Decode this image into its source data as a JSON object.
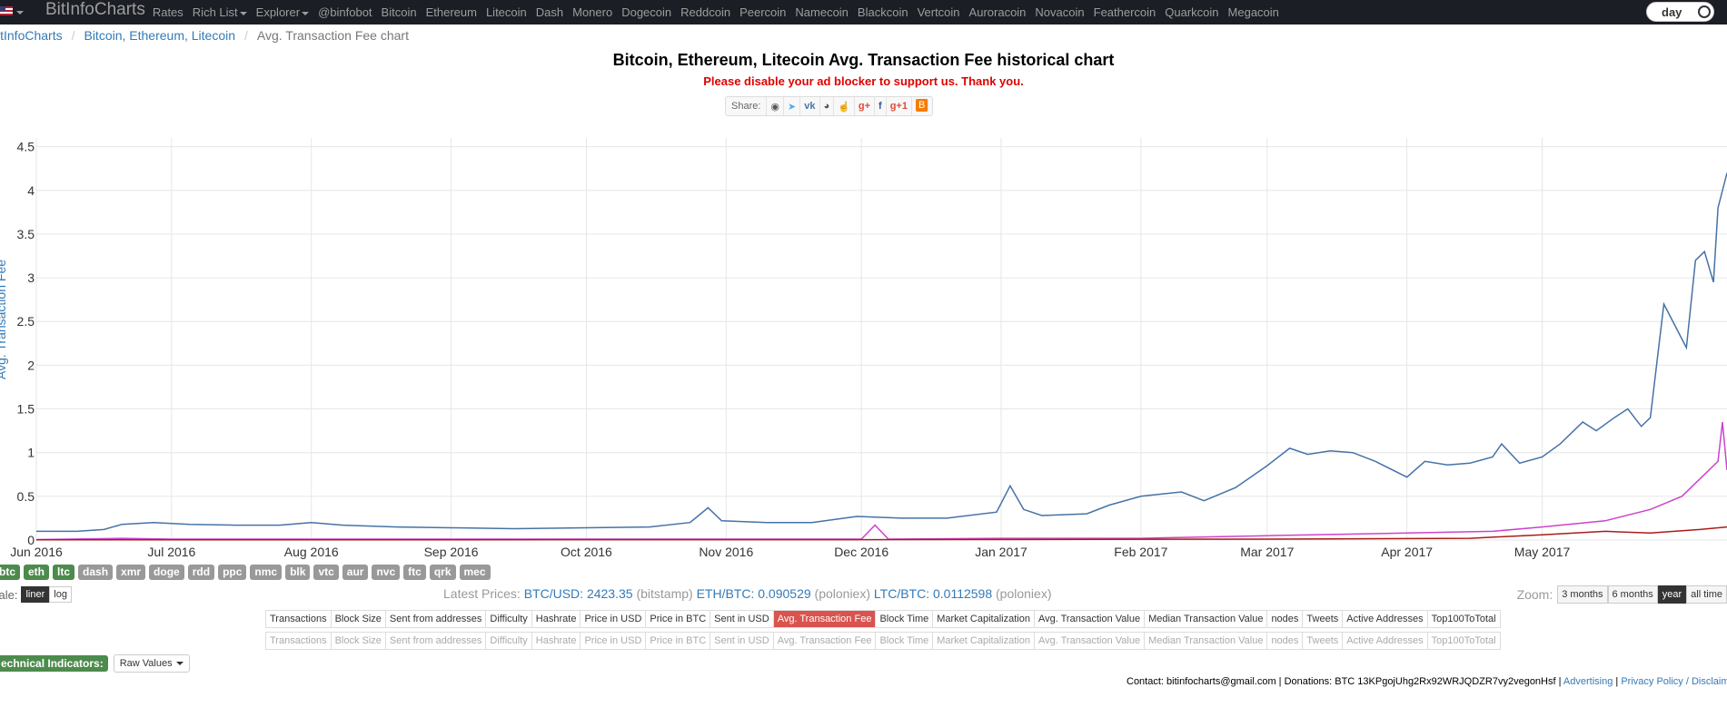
{
  "navbar": {
    "brand": "BitInfoCharts",
    "items": [
      "Rates",
      "Rich List",
      "Explorer",
      "@binfobot",
      "Bitcoin",
      "Ethereum",
      "Litecoin",
      "Dash",
      "Monero",
      "Dogecoin",
      "Reddcoin",
      "Peercoin",
      "Namecoin",
      "Blackcoin",
      "Vertcoin",
      "Auroracoin",
      "Novacoin",
      "Feathercoin",
      "Quarkcoin",
      "Megacoin"
    ],
    "toggle_label": "day"
  },
  "breadcrumb": {
    "home": "itInfoCharts",
    "section": "Bitcoin, Ethereum, Litecoin",
    "current": "Avg. Transaction Fee chart"
  },
  "page": {
    "title": "Bitcoin, Ethereum, Litecoin Avg. Transaction Fee historical chart",
    "ad_note": "Please disable your ad blocker to support us. Thank you.",
    "share_label": "Share:"
  },
  "chart_data": {
    "type": "line",
    "title": "",
    "xlabel": "",
    "ylabel": "Avg. Transaction Fee",
    "ylim": [
      0,
      4.6
    ],
    "y_ticks": [
      "0",
      "0.5",
      "1",
      "1.5",
      "2",
      "2.5",
      "3",
      "3.5",
      "4",
      "4.5"
    ],
    "x_ticks": [
      "Jun 2016",
      "Jul 2016",
      "Aug 2016",
      "Sep 2016",
      "Oct 2016",
      "Nov 2016",
      "Dec 2016",
      "Jan 2017",
      "Feb 2017",
      "Mar 2017",
      "Apr 2017",
      "May 2017"
    ],
    "x_start": "2016-06-01",
    "x_end": "2017-06-11",
    "grid": true,
    "series": [
      {
        "color": "#4572a7",
        "points": [
          [
            "2016-06-01",
            0.1
          ],
          [
            "2016-06-10",
            0.1
          ],
          [
            "2016-06-16",
            0.12
          ],
          [
            "2016-06-20",
            0.18
          ],
          [
            "2016-06-27",
            0.2
          ],
          [
            "2016-07-05",
            0.18
          ],
          [
            "2016-07-15",
            0.17
          ],
          [
            "2016-07-25",
            0.17
          ],
          [
            "2016-08-01",
            0.2
          ],
          [
            "2016-08-08",
            0.17
          ],
          [
            "2016-08-20",
            0.15
          ],
          [
            "2016-09-01",
            0.14
          ],
          [
            "2016-09-15",
            0.13
          ],
          [
            "2016-10-01",
            0.14
          ],
          [
            "2016-10-15",
            0.15
          ],
          [
            "2016-10-24",
            0.2
          ],
          [
            "2016-10-28",
            0.37
          ],
          [
            "2016-10-31",
            0.22
          ],
          [
            "2016-11-10",
            0.2
          ],
          [
            "2016-11-20",
            0.2
          ],
          [
            "2016-11-30",
            0.27
          ],
          [
            "2016-12-10",
            0.25
          ],
          [
            "2016-12-20",
            0.25
          ],
          [
            "2016-12-31",
            0.32
          ],
          [
            "2017-01-03",
            0.62
          ],
          [
            "2017-01-06",
            0.35
          ],
          [
            "2017-01-10",
            0.28
          ],
          [
            "2017-01-20",
            0.3
          ],
          [
            "2017-01-25",
            0.4
          ],
          [
            "2017-02-01",
            0.5
          ],
          [
            "2017-02-10",
            0.55
          ],
          [
            "2017-02-15",
            0.45
          ],
          [
            "2017-02-22",
            0.6
          ],
          [
            "2017-03-01",
            0.85
          ],
          [
            "2017-03-06",
            1.05
          ],
          [
            "2017-03-10",
            0.98
          ],
          [
            "2017-03-15",
            1.02
          ],
          [
            "2017-03-20",
            1.0
          ],
          [
            "2017-03-25",
            0.9
          ],
          [
            "2017-04-01",
            0.72
          ],
          [
            "2017-04-05",
            0.9
          ],
          [
            "2017-04-10",
            0.86
          ],
          [
            "2017-04-15",
            0.88
          ],
          [
            "2017-04-20",
            0.95
          ],
          [
            "2017-04-22",
            1.1
          ],
          [
            "2017-04-26",
            0.88
          ],
          [
            "2017-05-01",
            0.95
          ],
          [
            "2017-05-05",
            1.1
          ],
          [
            "2017-05-10",
            1.35
          ],
          [
            "2017-05-13",
            1.25
          ],
          [
            "2017-05-17",
            1.4
          ],
          [
            "2017-05-20",
            1.5
          ],
          [
            "2017-05-23",
            1.3
          ],
          [
            "2017-05-25",
            1.4
          ],
          [
            "2017-05-28",
            2.7
          ],
          [
            "2017-05-31",
            2.4
          ],
          [
            "2017-06-02",
            2.2
          ],
          [
            "2017-06-04",
            3.2
          ],
          [
            "2017-06-06",
            3.3
          ],
          [
            "2017-06-08",
            2.95
          ],
          [
            "2017-06-09",
            3.8
          ],
          [
            "2017-06-11",
            4.2
          ]
        ]
      },
      {
        "color": "#cc44cc",
        "points": [
          [
            "2016-06-01",
            0.005
          ],
          [
            "2016-06-20",
            0.02
          ],
          [
            "2016-07-01",
            0.01
          ],
          [
            "2016-08-01",
            0.01
          ],
          [
            "2016-09-01",
            0.01
          ],
          [
            "2016-10-01",
            0.01
          ],
          [
            "2016-11-01",
            0.01
          ],
          [
            "2016-12-01",
            0.01
          ],
          [
            "2016-12-04",
            0.17
          ],
          [
            "2016-12-07",
            0.01
          ],
          [
            "2017-01-01",
            0.02
          ],
          [
            "2017-02-01",
            0.02
          ],
          [
            "2017-03-01",
            0.05
          ],
          [
            "2017-04-01",
            0.08
          ],
          [
            "2017-04-20",
            0.1
          ],
          [
            "2017-05-01",
            0.15
          ],
          [
            "2017-05-15",
            0.22
          ],
          [
            "2017-05-25",
            0.35
          ],
          [
            "2017-06-01",
            0.5
          ],
          [
            "2017-06-06",
            0.75
          ],
          [
            "2017-06-09",
            0.9
          ],
          [
            "2017-06-10",
            1.35
          ],
          [
            "2017-06-11",
            0.8
          ]
        ]
      },
      {
        "color": "#aa1c1c",
        "points": [
          [
            "2016-06-01",
            0.003
          ],
          [
            "2016-09-01",
            0.003
          ],
          [
            "2016-12-01",
            0.004
          ],
          [
            "2017-03-01",
            0.01
          ],
          [
            "2017-04-15",
            0.02
          ],
          [
            "2017-05-01",
            0.06
          ],
          [
            "2017-05-15",
            0.1
          ],
          [
            "2017-05-25",
            0.08
          ],
          [
            "2017-06-05",
            0.12
          ],
          [
            "2017-06-11",
            0.15
          ]
        ]
      }
    ]
  },
  "coins": [
    {
      "label": "btc",
      "on": true
    },
    {
      "label": "eth",
      "on": true
    },
    {
      "label": "ltc",
      "on": true
    },
    {
      "label": "dash",
      "on": false
    },
    {
      "label": "xmr",
      "on": false
    },
    {
      "label": "doge",
      "on": false
    },
    {
      "label": "rdd",
      "on": false
    },
    {
      "label": "ppc",
      "on": false
    },
    {
      "label": "nmc",
      "on": false
    },
    {
      "label": "blk",
      "on": false
    },
    {
      "label": "vtc",
      "on": false
    },
    {
      "label": "aur",
      "on": false
    },
    {
      "label": "nvc",
      "on": false
    },
    {
      "label": "ftc",
      "on": false
    },
    {
      "label": "qrk",
      "on": false
    },
    {
      "label": "mec",
      "on": false
    }
  ],
  "scale": {
    "label": "cale:",
    "liner": "liner",
    "log": "log"
  },
  "latest": {
    "label": "Latest Prices:",
    "btc_usd": "BTC/USD: 2423.35",
    "btc_src": "(bitstamp)",
    "eth_btc": "ETH/BTC: 0.090529",
    "eth_src": "(poloniex)",
    "ltc_btc": "LTC/BTC: 0.0112598",
    "ltc_src": "(poloniex)"
  },
  "zoom": {
    "label": "Zoom:",
    "options": [
      "3 months",
      "6 months",
      "year",
      "all time"
    ],
    "active": "year"
  },
  "metrics": {
    "row1": [
      "Transactions",
      "Block Size",
      "Sent from addresses",
      "Difficulty",
      "Hashrate",
      "Price in USD",
      "Price in BTC",
      "Sent in USD",
      "Avg. Transaction Fee",
      "Block Time",
      "Market Capitalization",
      "Avg. Transaction Value",
      "Median Transaction Value",
      "nodes",
      "Tweets",
      "Active Addresses",
      "Top100ToTotal"
    ],
    "row2": [
      "Transactions",
      "Block Size",
      "Sent from addresses",
      "Difficulty",
      "Hashrate",
      "Price in USD",
      "Price in BTC",
      "Sent in USD",
      "Avg. Transaction Fee",
      "Block Time",
      "Market Capitalization",
      "Avg. Transaction Value",
      "Median Transaction Value",
      "nodes",
      "Tweets",
      "Active Addresses",
      "Top100ToTotal"
    ],
    "active": "Avg. Transaction Fee"
  },
  "tech": {
    "label": "echnical Indicators:",
    "select": "Raw Values"
  },
  "footer": {
    "contact": "Contact: bitinfocharts@gmail.com | Donations: BTC 13KPgojUhg2Rx92WRJQDZR7vy2vegonHsf |",
    "advertising": "Advertising",
    "sep": "|",
    "privacy": "Privacy Policy / Disclaimer"
  }
}
